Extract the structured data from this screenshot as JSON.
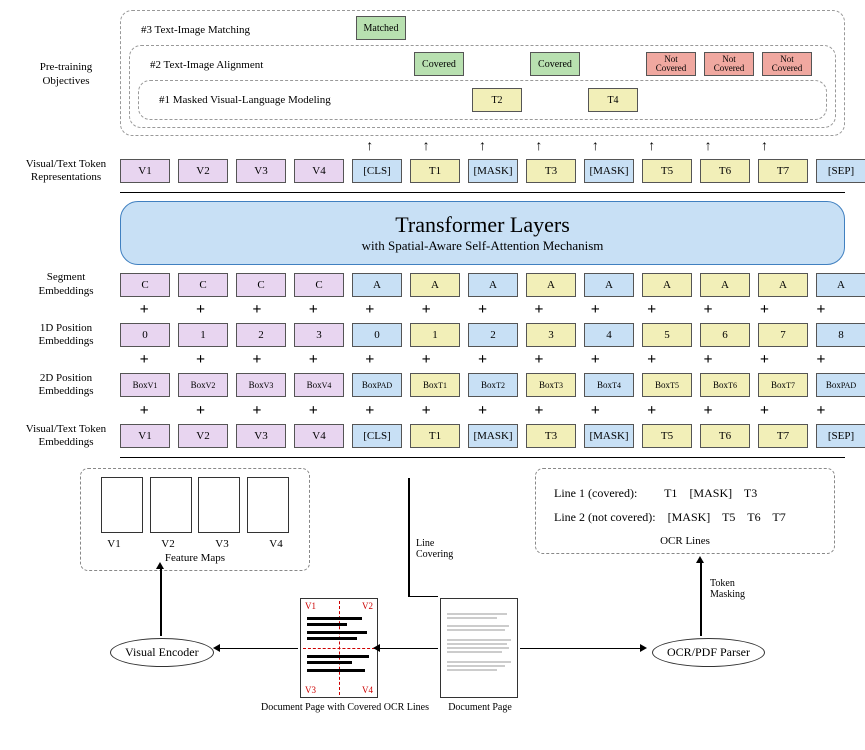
{
  "colors": {
    "purple": "#e8d5f0",
    "blue": "#c8e0f5",
    "yellow": "#f2efb8",
    "green": "#b8e0b0",
    "red": "#f0a8a0",
    "border": "#555",
    "dash": "#999",
    "hr": "#000",
    "redDash": "#c00"
  },
  "fonts": {
    "body": "Times New Roman",
    "base_size": 12,
    "transformer_title": 22,
    "transformer_sub": 13,
    "label": 11
  },
  "objectives": {
    "box3": {
      "label": "#3 Text-Image Matching",
      "items": [
        {
          "text": "Matched",
          "color": "green",
          "slot": 4
        }
      ]
    },
    "box2": {
      "label": "#2 Text-Image Alignment",
      "items": [
        {
          "text": "Covered",
          "color": "green",
          "slot": 5
        },
        {
          "text": "Covered",
          "color": "green",
          "slot": 7
        },
        {
          "text": "Not Covered",
          "color": "red",
          "slot": 9
        },
        {
          "text": "Not Covered",
          "color": "red",
          "slot": 10
        },
        {
          "text": "Not Covered",
          "color": "red",
          "slot": 11
        }
      ]
    },
    "box1": {
      "label": "#1 Masked Visual-Language Modeling",
      "items": [
        {
          "text": "T2",
          "color": "yellow",
          "slot": 6
        },
        {
          "text": "T4",
          "color": "yellow",
          "slot": 8
        }
      ]
    }
  },
  "side_label_objectives": "Pre-training\nObjectives",
  "rows": {
    "repr": {
      "label": "Visual/Text Token\nRepresentations",
      "cells": [
        {
          "t": "V1",
          "c": "purple"
        },
        {
          "t": "V2",
          "c": "purple"
        },
        {
          "t": "V3",
          "c": "purple"
        },
        {
          "t": "V4",
          "c": "purple"
        },
        {
          "t": "[CLS]",
          "c": "blue"
        },
        {
          "t": "T1",
          "c": "yellow"
        },
        {
          "t": "[MASK]",
          "c": "blue"
        },
        {
          "t": "T3",
          "c": "yellow"
        },
        {
          "t": "[MASK]",
          "c": "blue"
        },
        {
          "t": "T5",
          "c": "yellow"
        },
        {
          "t": "T6",
          "c": "yellow"
        },
        {
          "t": "T7",
          "c": "yellow"
        },
        {
          "t": "[SEP]",
          "c": "blue"
        }
      ]
    },
    "segment": {
      "label": "Segment\nEmbeddings",
      "cells": [
        {
          "t": "C",
          "c": "purple"
        },
        {
          "t": "C",
          "c": "purple"
        },
        {
          "t": "C",
          "c": "purple"
        },
        {
          "t": "C",
          "c": "purple"
        },
        {
          "t": "A",
          "c": "blue"
        },
        {
          "t": "A",
          "c": "yellow"
        },
        {
          "t": "A",
          "c": "blue"
        },
        {
          "t": "A",
          "c": "yellow"
        },
        {
          "t": "A",
          "c": "blue"
        },
        {
          "t": "A",
          "c": "yellow"
        },
        {
          "t": "A",
          "c": "yellow"
        },
        {
          "t": "A",
          "c": "yellow"
        },
        {
          "t": "A",
          "c": "blue"
        }
      ]
    },
    "pos1d": {
      "label": "1D Position\nEmbeddings",
      "cells": [
        {
          "t": "0",
          "c": "purple"
        },
        {
          "t": "1",
          "c": "purple"
        },
        {
          "t": "2",
          "c": "purple"
        },
        {
          "t": "3",
          "c": "purple"
        },
        {
          "t": "0",
          "c": "blue"
        },
        {
          "t": "1",
          "c": "yellow"
        },
        {
          "t": "2",
          "c": "blue"
        },
        {
          "t": "3",
          "c": "yellow"
        },
        {
          "t": "4",
          "c": "blue"
        },
        {
          "t": "5",
          "c": "yellow"
        },
        {
          "t": "6",
          "c": "yellow"
        },
        {
          "t": "7",
          "c": "yellow"
        },
        {
          "t": "8",
          "c": "blue"
        }
      ]
    },
    "pos2d": {
      "label": "2D Position\nEmbeddings",
      "cells": [
        {
          "t": "Box_V1",
          "c": "purple"
        },
        {
          "t": "Box_V2",
          "c": "purple"
        },
        {
          "t": "Box_V3",
          "c": "purple"
        },
        {
          "t": "Box_V4",
          "c": "purple"
        },
        {
          "t": "Box_PAD",
          "c": "blue"
        },
        {
          "t": "Box_T1",
          "c": "yellow"
        },
        {
          "t": "Box_T2",
          "c": "blue"
        },
        {
          "t": "Box_T3",
          "c": "yellow"
        },
        {
          "t": "Box_T4",
          "c": "blue"
        },
        {
          "t": "Box_T5",
          "c": "yellow"
        },
        {
          "t": "Box_T6",
          "c": "yellow"
        },
        {
          "t": "Box_T7",
          "c": "yellow"
        },
        {
          "t": "Box_PAD",
          "c": "blue"
        }
      ]
    },
    "emb": {
      "label": "Visual/Text Token\nEmbeddings",
      "cells": [
        {
          "t": "V1",
          "c": "purple"
        },
        {
          "t": "V2",
          "c": "purple"
        },
        {
          "t": "V3",
          "c": "purple"
        },
        {
          "t": "V4",
          "c": "purple"
        },
        {
          "t": "[CLS]",
          "c": "blue"
        },
        {
          "t": "T1",
          "c": "yellow"
        },
        {
          "t": "[MASK]",
          "c": "blue"
        },
        {
          "t": "T3",
          "c": "yellow"
        },
        {
          "t": "[MASK]",
          "c": "blue"
        },
        {
          "t": "T5",
          "c": "yellow"
        },
        {
          "t": "T6",
          "c": "yellow"
        },
        {
          "t": "T7",
          "c": "yellow"
        },
        {
          "t": "[SEP]",
          "c": "blue"
        }
      ]
    }
  },
  "transformer": {
    "title": "Transformer Layers",
    "subtitle": "with Spatial-Aware Self-Attention Mechanism"
  },
  "bottom": {
    "feature_maps": {
      "title": "Feature Maps",
      "labels": [
        "V1",
        "V2",
        "V3",
        "V4"
      ]
    },
    "ocr_lines": {
      "title": "OCR Lines",
      "line1_label": "Line 1 (covered):",
      "line1_tokens": [
        "T1",
        "[MASK]",
        "T3"
      ],
      "line2_label": "Line 2 (not covered):",
      "line2_tokens": [
        "[MASK]",
        "T5",
        "T6",
        "T7"
      ]
    },
    "visual_encoder": "Visual Encoder",
    "ocr_parser": "OCR/PDF Parser",
    "doc_covered_caption": "Document Page with Covered OCR Lines",
    "doc_caption": "Document Page",
    "arrow_line_covering": "Line\nCovering",
    "arrow_token_masking": "Token\nMasking",
    "quad_labels": [
      "V1",
      "V2",
      "V3",
      "V4"
    ]
  }
}
